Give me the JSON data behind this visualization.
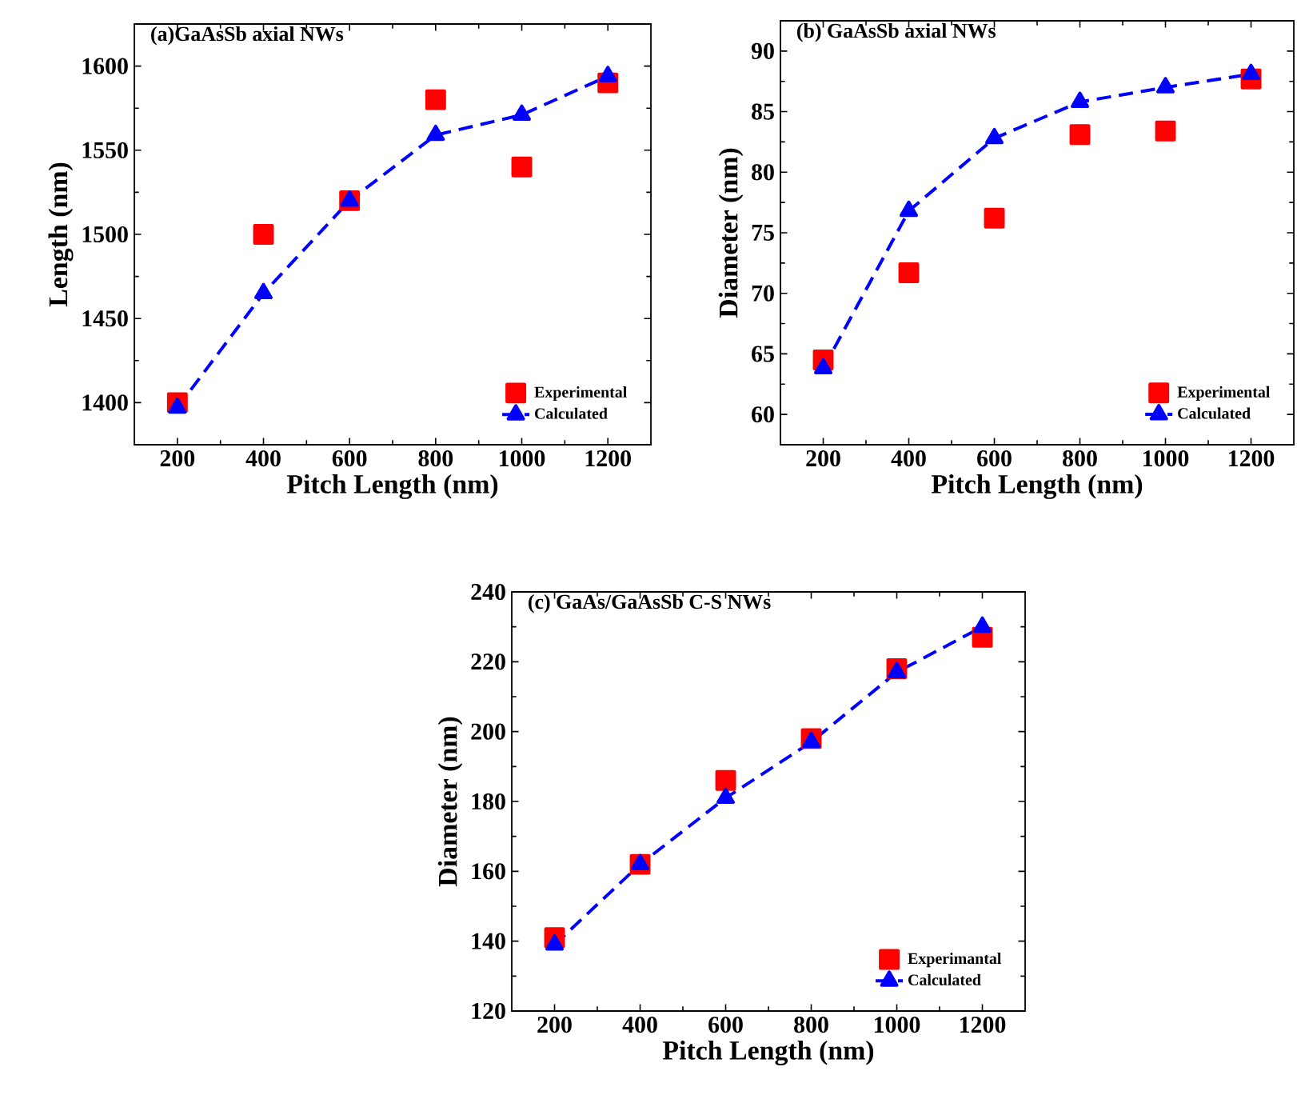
{
  "chart_data": [
    {
      "type": "scatter",
      "title": "(a)GaAsSb axial NWs",
      "xlabel": "Pitch Length (nm)",
      "ylabel": "Length (nm)",
      "x": [
        200,
        400,
        600,
        800,
        1000,
        1200
      ],
      "xlim": [
        100,
        1300
      ],
      "ylim": [
        1375,
        1625
      ],
      "xticks": [
        200,
        400,
        600,
        800,
        1000,
        1200
      ],
      "yticks": [
        1400,
        1450,
        1500,
        1550,
        1600
      ],
      "legend": "bottom right",
      "series": [
        {
          "name": "Experimental",
          "marker": "square",
          "color": "#ff0000",
          "values": [
            1400,
            1500,
            1520,
            1580,
            1540,
            1590
          ]
        },
        {
          "name": "Calculated",
          "type": "line",
          "marker": "triangle",
          "line_style": "dashed",
          "color": "#0000ff",
          "values": [
            1397,
            1465,
            1520,
            1559,
            1571,
            1594
          ]
        }
      ]
    },
    {
      "type": "scatter",
      "title": "(b) GaAsSb axial NWs",
      "xlabel": "Pitch Length (nm)",
      "ylabel": "Diameter (nm)",
      "x": [
        200,
        400,
        600,
        800,
        1000,
        1200
      ],
      "xlim": [
        100,
        1300
      ],
      "ylim": [
        57.5,
        92.5
      ],
      "xticks": [
        200,
        400,
        600,
        800,
        1000,
        1200
      ],
      "yticks": [
        60,
        65,
        70,
        75,
        80,
        85,
        90
      ],
      "legend": "bottom right",
      "series": [
        {
          "name": "Experimental",
          "marker": "square",
          "color": "#ff0000",
          "values": [
            64.5,
            71.7,
            76.2,
            83.1,
            83.4,
            87.7
          ]
        },
        {
          "name": "Calculated",
          "type": "line",
          "marker": "triangle",
          "line_style": "dashed",
          "color": "#0000ff",
          "values": [
            63.8,
            76.8,
            82.8,
            85.8,
            87.0,
            88.1
          ]
        }
      ]
    },
    {
      "type": "scatter",
      "title": "(c) GaAs/GaAsSb C-S NWs",
      "xlabel": "Pitch Length (nm)",
      "ylabel": "Diameter (nm)",
      "x": [
        200,
        400,
        600,
        800,
        1000,
        1200
      ],
      "xlim": [
        100,
        1300
      ],
      "ylim": [
        120,
        240
      ],
      "xticks": [
        200,
        400,
        600,
        800,
        1000,
        1200
      ],
      "yticks": [
        120,
        140,
        160,
        180,
        200,
        220,
        240
      ],
      "legend": "bottom right",
      "series": [
        {
          "name": "Experimantal",
          "marker": "square",
          "color": "#ff0000",
          "values": [
            141,
            162,
            186,
            198,
            218,
            227
          ]
        },
        {
          "name": "Calculated",
          "type": "line",
          "marker": "triangle",
          "line_style": "dashed",
          "color": "#0000ff",
          "values": [
            139,
            162,
            181,
            197,
            217,
            230
          ]
        }
      ]
    }
  ]
}
